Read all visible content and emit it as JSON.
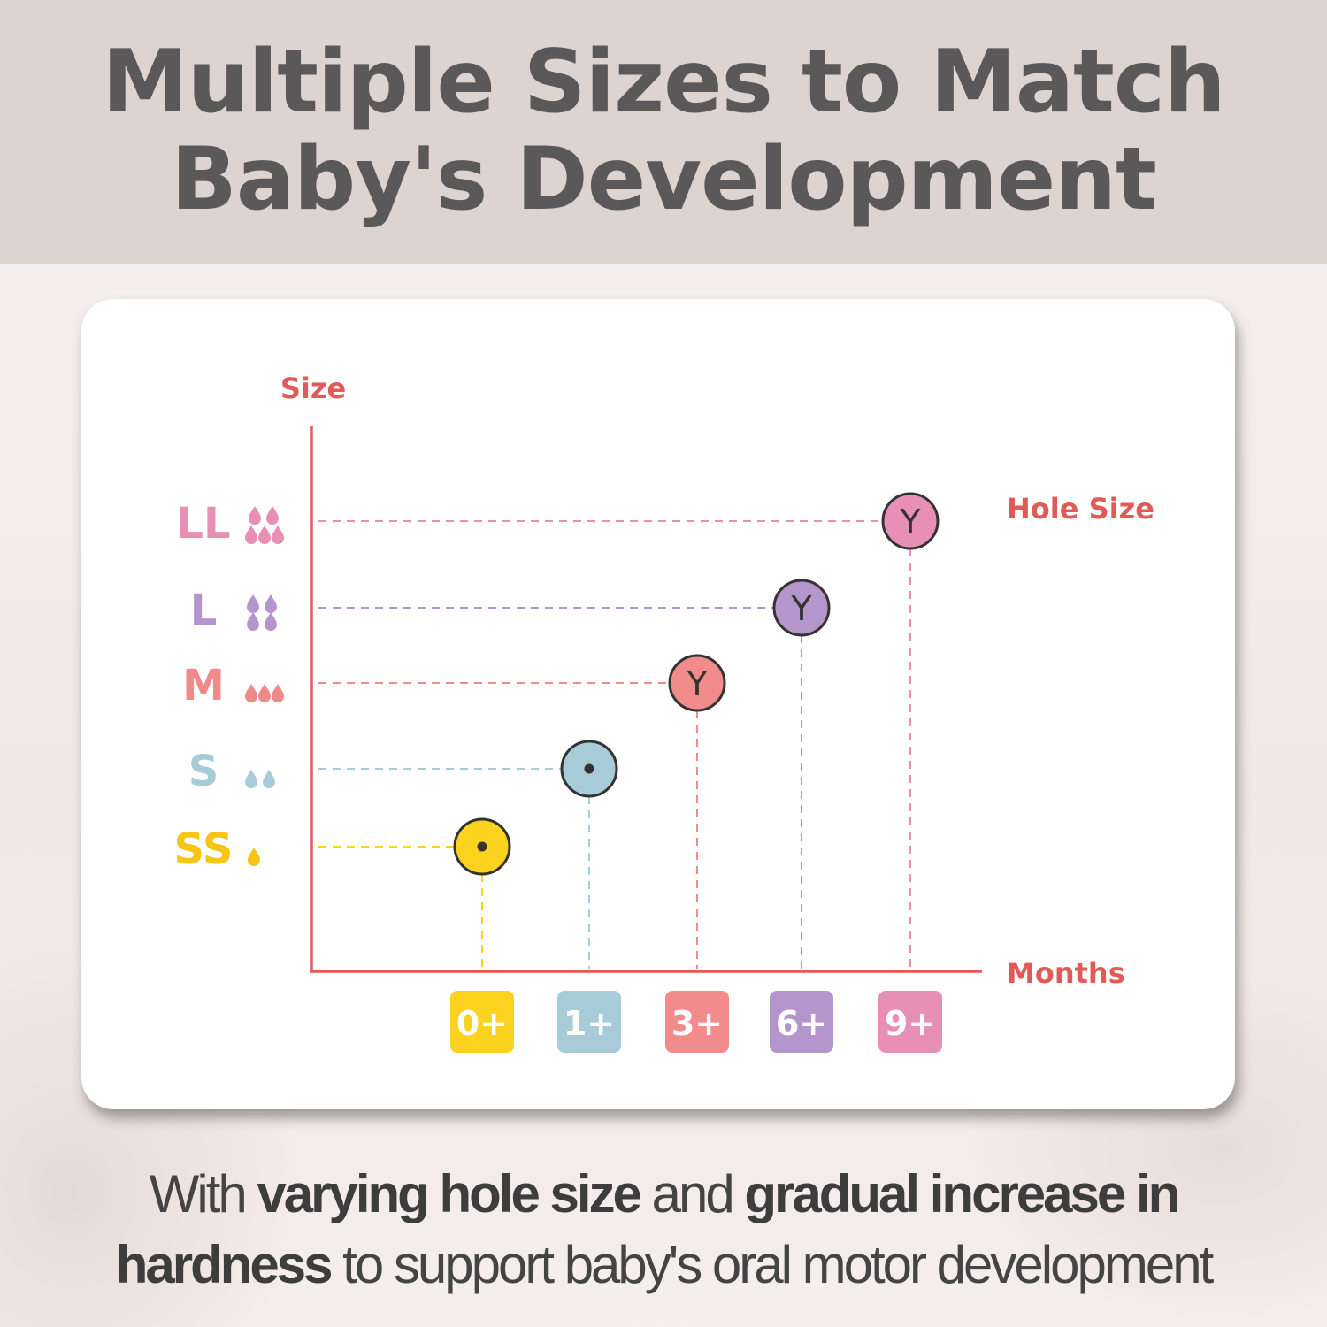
{
  "header": {
    "title_line1": "Multiple Sizes to Match",
    "title_line2": "Baby's Development"
  },
  "chart_data": {
    "type": "scatter",
    "ylabel": "Size",
    "xlabel": "Months",
    "series_label": "Hole Size",
    "size_levels": [
      {
        "label": "SS",
        "drops": 1,
        "color": "#f5c518"
      },
      {
        "label": "S",
        "drops": 2,
        "color": "#a8cbd8"
      },
      {
        "label": "M",
        "drops": 3,
        "color": "#ef8a8a"
      },
      {
        "label": "L",
        "drops": 4,
        "color": "#b596cc"
      },
      {
        "label": "LL",
        "drops": 5,
        "color": "#e78fb4"
      }
    ],
    "categories": [
      "0+",
      "1+",
      "3+",
      "6+",
      "9+"
    ],
    "points": [
      {
        "x": "0+",
        "y": "SS",
        "hole": "dot",
        "color": "#fbd21e"
      },
      {
        "x": "1+",
        "y": "S",
        "hole": "dot",
        "color": "#a8cbd8"
      },
      {
        "x": "3+",
        "y": "M",
        "hole": "Y",
        "color": "#f28b8b"
      },
      {
        "x": "6+",
        "y": "L",
        "hole": "Y",
        "color": "#b596cc"
      },
      {
        "x": "9+",
        "y": "LL",
        "hole": "Y",
        "color": "#e78fb4"
      }
    ],
    "axis_color": "#e05a5a"
  },
  "footer": {
    "p1": "With ",
    "b1": "varying hole size",
    "p2": " and ",
    "b2": "gradual increase in",
    "b3": "hardness",
    "p3": " to support baby's oral motor development"
  }
}
